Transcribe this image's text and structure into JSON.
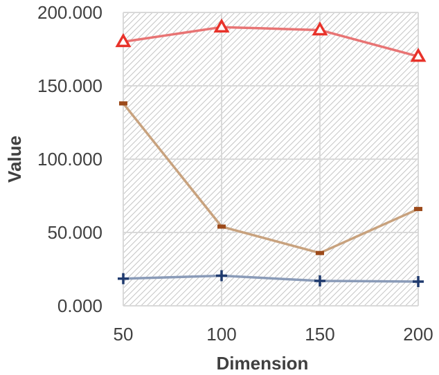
{
  "chart_data": {
    "type": "line",
    "title": "",
    "xlabel": "Dimension",
    "ylabel": "Value",
    "x": [
      50,
      100,
      150,
      200
    ],
    "x_tick_labels": [
      "50",
      "100",
      "150",
      "200"
    ],
    "ylim": [
      0,
      200
    ],
    "y_ticks": [
      0,
      50,
      100,
      150,
      200
    ],
    "y_tick_labels": [
      "0.000",
      "50.000",
      "100.000",
      "150.000",
      "200.000"
    ],
    "grid": true,
    "legend": "none",
    "plot_background": "diagonal-hatch",
    "series": [
      {
        "values": [
          180,
          190,
          188,
          170
        ],
        "color": "#e87474",
        "marker": "triangle",
        "marker_color": "#e8322a"
      },
      {
        "values": [
          138,
          54,
          36,
          66
        ],
        "color": "#c8a27e",
        "marker": "dash",
        "marker_color": "#9c4a1a"
      },
      {
        "values": [
          18.5,
          20.5,
          17,
          16.5
        ],
        "color": "#8a9bb8",
        "marker": "plus",
        "marker_color": "#1f3a6e"
      }
    ]
  }
}
